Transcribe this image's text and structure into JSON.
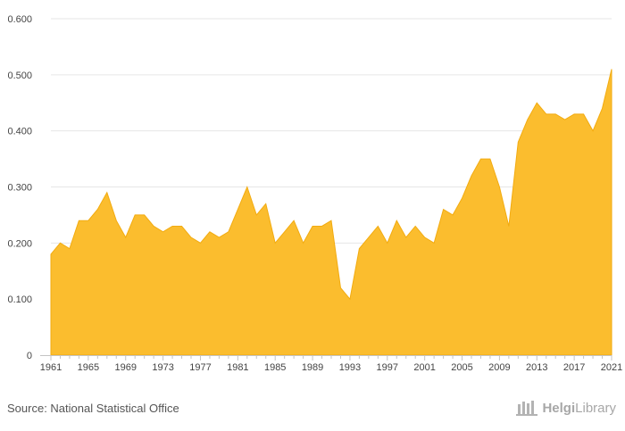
{
  "chart_data": {
    "type": "area",
    "title": "",
    "xlabel": "",
    "ylabel": "",
    "ylim": [
      0,
      0.6
    ],
    "yticks": [
      "0",
      "0.100",
      "0.200",
      "0.300",
      "0.400",
      "0.500",
      "0.600"
    ],
    "xticks": [
      "1961",
      "1965",
      "1969",
      "1973",
      "1977",
      "1981",
      "1985",
      "1989",
      "1993",
      "1997",
      "2001",
      "2005",
      "2009",
      "2013",
      "2017",
      "2021"
    ],
    "x": [
      1961,
      1962,
      1963,
      1964,
      1965,
      1966,
      1967,
      1968,
      1969,
      1970,
      1971,
      1972,
      1973,
      1974,
      1975,
      1976,
      1977,
      1978,
      1979,
      1980,
      1981,
      1982,
      1983,
      1984,
      1985,
      1986,
      1987,
      1988,
      1989,
      1990,
      1991,
      1992,
      1993,
      1994,
      1995,
      1996,
      1997,
      1998,
      1999,
      2000,
      2001,
      2002,
      2003,
      2004,
      2005,
      2006,
      2007,
      2008,
      2009,
      2010,
      2011,
      2012,
      2013,
      2014,
      2015,
      2016,
      2017,
      2018,
      2019,
      2020,
      2021
    ],
    "values": [
      0.18,
      0.2,
      0.19,
      0.24,
      0.24,
      0.26,
      0.29,
      0.24,
      0.21,
      0.25,
      0.25,
      0.23,
      0.22,
      0.23,
      0.23,
      0.21,
      0.2,
      0.22,
      0.21,
      0.22,
      0.26,
      0.3,
      0.25,
      0.27,
      0.2,
      0.22,
      0.24,
      0.2,
      0.23,
      0.23,
      0.24,
      0.12,
      0.1,
      0.19,
      0.21,
      0.23,
      0.2,
      0.24,
      0.21,
      0.23,
      0.21,
      0.2,
      0.26,
      0.25,
      0.28,
      0.32,
      0.35,
      0.35,
      0.3,
      0.23,
      0.38,
      0.42,
      0.45,
      0.43,
      0.43,
      0.42,
      0.43,
      0.43,
      0.4,
      0.44,
      0.51
    ],
    "fill_color": "#fbbd2e",
    "grid": true
  },
  "footer": {
    "source": "Source: National Statistical Office",
    "logo_part1": "Helgi",
    "logo_part2": "Library"
  }
}
